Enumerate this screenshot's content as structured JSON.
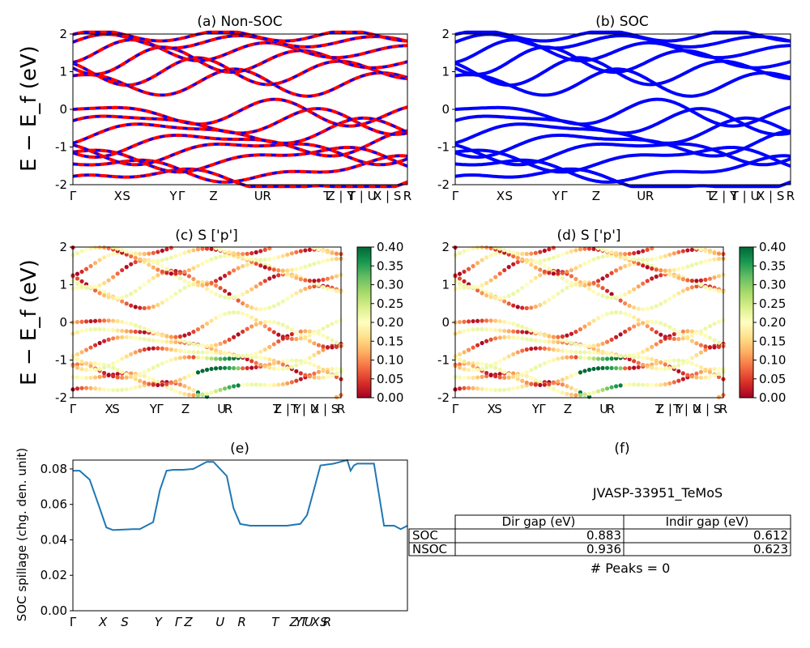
{
  "ylabel_energy": "E − E_f (eV)",
  "tick_labels_1": [
    "Γ",
    "X",
    "S",
    "Y",
    "Γ",
    "Z",
    "U",
    "R",
    "T",
    "Z | Y",
    "T | U",
    "X | S",
    "R"
  ],
  "tick_labels_e": [
    "Γ",
    "X",
    "S",
    "Y",
    "Γ",
    "Z",
    "U",
    "R",
    "T",
    "Z",
    "Y",
    "T",
    "U",
    "X",
    "S",
    "R"
  ],
  "panels": {
    "a": {
      "title": "(a) Non-SOC"
    },
    "b": {
      "title": "(b) SOC"
    },
    "c": {
      "title": "(c)  S ['p']"
    },
    "d": {
      "title": "(d) S ['p']"
    },
    "e": {
      "title": "(e)"
    },
    "f": {
      "title": "(f)"
    }
  },
  "colorbar": {
    "ticks": [
      "0.40",
      "0.35",
      "0.30",
      "0.25",
      "0.20",
      "0.15",
      "0.10",
      "0.05",
      "0.00"
    ],
    "range": [
      0,
      0.4
    ],
    "colormap": "RdYlGn"
  },
  "table": {
    "title": "JVASP-33951_TeMoS",
    "headers": [
      "Dir gap (eV)",
      "Indir gap (eV)"
    ],
    "rows": [
      {
        "label": "SOC",
        "dir": "0.883",
        "indir": "0.612"
      },
      {
        "label": "NSOC",
        "dir": "0.936",
        "indir": "0.623"
      }
    ],
    "peaks": "# Peaks = 0"
  },
  "chart_data": [
    {
      "id": "a",
      "type": "line",
      "title": "(a) Non-SOC",
      "ylabel": "E − E_f (eV)",
      "ylim": [
        -2,
        2
      ],
      "yticks": [
        -2,
        -1,
        0,
        1,
        2
      ],
      "colors": [
        "#ff0000",
        "#0000ff"
      ],
      "note": "band structure; non-SOC bands drawn red, dashed blue overlay"
    },
    {
      "id": "b",
      "type": "line",
      "title": "(b) SOC",
      "ylim": [
        -2,
        2
      ],
      "yticks": [
        -2,
        -1,
        0,
        1,
        2
      ],
      "colors": [
        "#0000ff"
      ]
    },
    {
      "id": "c",
      "type": "scatter",
      "title": "(c)  S ['p']",
      "ylabel": "E − E_f (eV)",
      "ylim": [
        -2,
        2
      ],
      "yticks": [
        -2,
        -1,
        0,
        1,
        2
      ],
      "colorbar_range": [
        0,
        0.4
      ]
    },
    {
      "id": "d",
      "type": "scatter",
      "title": "(d) S ['p']",
      "ylim": [
        -2,
        2
      ],
      "yticks": [
        -2,
        -1,
        0,
        1,
        2
      ],
      "colorbar_range": [
        0,
        0.4
      ]
    },
    {
      "id": "e",
      "type": "line",
      "title": "(e)",
      "ylabel": "SOC spillage (chg. den. unit)",
      "ylim": [
        0,
        0.085
      ],
      "yticks": [
        0.0,
        0.02,
        0.04,
        0.06,
        0.08
      ],
      "color": "#1f77b4",
      "x": [
        0,
        0.02,
        0.05,
        0.08,
        0.1,
        0.12,
        0.18,
        0.2,
        0.24,
        0.26,
        0.28,
        0.3,
        0.33,
        0.36,
        0.4,
        0.42,
        0.46,
        0.48,
        0.5,
        0.53,
        0.56,
        0.6,
        0.64,
        0.68,
        0.7,
        0.72,
        0.74,
        0.76,
        0.78,
        0.8,
        0.82,
        0.83,
        0.84,
        0.85,
        0.86,
        0.9,
        0.93,
        0.96,
        0.98,
        1.0
      ],
      "y": [
        0.079,
        0.079,
        0.074,
        0.058,
        0.047,
        0.0455,
        0.046,
        0.046,
        0.05,
        0.068,
        0.079,
        0.0795,
        0.0795,
        0.08,
        0.084,
        0.084,
        0.076,
        0.058,
        0.049,
        0.048,
        0.048,
        0.048,
        0.048,
        0.049,
        0.054,
        0.068,
        0.082,
        0.0825,
        0.083,
        0.084,
        0.085,
        0.079,
        0.082,
        0.083,
        0.083,
        0.083,
        0.048,
        0.048,
        0.046,
        0.048
      ]
    }
  ]
}
